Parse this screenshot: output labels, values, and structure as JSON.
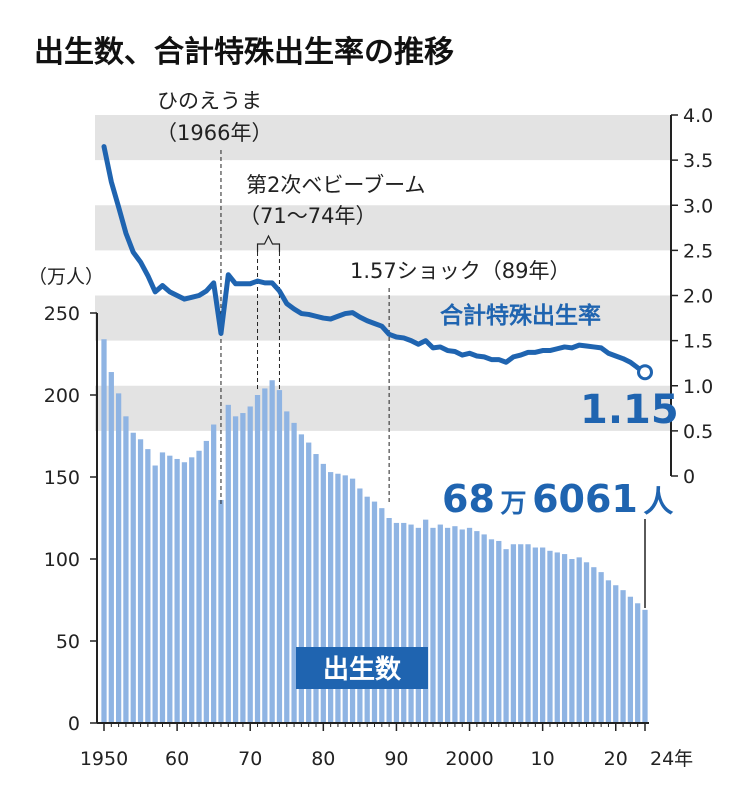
{
  "title": "出生数、合計特殊出生率の推移",
  "colors": {
    "bar": "#8fb4e3",
    "line": "#1f64b0",
    "band": "#e3e3e3",
    "label_box": "#1f64b0",
    "axis": "#222222"
  },
  "annotations": {
    "hinoeuma_title": "ひのえうま",
    "hinoeuma_year": "（1966年）",
    "boom_title": "第2次ベビーブーム",
    "boom_years": "（71〜74年）",
    "shock": "1.57ショック（89年）"
  },
  "labels": {
    "births_unit": "（万人）",
    "rate_series": "合計特殊出生率",
    "rate_final": "1.15",
    "births_final_num1": "68",
    "births_final_unit1": "万",
    "births_final_num2": "6061",
    "births_final_unit2": "人",
    "births_series": "出生数"
  },
  "chart_data": {
    "type": "bar+line",
    "x_range": [
      1950,
      2024
    ],
    "x_tick_labels": [
      {
        "year": 1950,
        "label": "1950"
      },
      {
        "year": 1960,
        "label": "60"
      },
      {
        "year": 1970,
        "label": "70"
      },
      {
        "year": 1980,
        "label": "80"
      },
      {
        "year": 1990,
        "label": "90"
      },
      {
        "year": 2000,
        "label": "2000"
      },
      {
        "year": 2010,
        "label": "10"
      },
      {
        "year": 2020,
        "label": "20"
      },
      {
        "year": 2024,
        "label": "24年"
      }
    ],
    "left_axis": {
      "label": "（万人）",
      "ylim": [
        0,
        250
      ],
      "ticks": [
        0,
        50,
        100,
        150,
        200,
        250
      ]
    },
    "right_axis": {
      "ylim": [
        0,
        4.0
      ],
      "ticks": [
        "0",
        "0.5",
        "1.0",
        "1.5",
        "2.0",
        "2.5",
        "3.0",
        "3.5",
        "4.0"
      ]
    },
    "series": [
      {
        "name": "出生数",
        "type": "bar",
        "axis": "left",
        "x": [
          1950,
          1951,
          1952,
          1953,
          1954,
          1955,
          1956,
          1957,
          1958,
          1959,
          1960,
          1961,
          1962,
          1963,
          1964,
          1965,
          1966,
          1967,
          1968,
          1969,
          1970,
          1971,
          1972,
          1973,
          1974,
          1975,
          1976,
          1977,
          1978,
          1979,
          1980,
          1981,
          1982,
          1983,
          1984,
          1985,
          1986,
          1987,
          1988,
          1989,
          1990,
          1991,
          1992,
          1993,
          1994,
          1995,
          1996,
          1997,
          1998,
          1999,
          2000,
          2001,
          2002,
          2003,
          2004,
          2005,
          2006,
          2007,
          2008,
          2009,
          2010,
          2011,
          2012,
          2013,
          2014,
          2015,
          2016,
          2017,
          2018,
          2019,
          2020,
          2021,
          2022,
          2023,
          2024
        ],
        "values": [
          234,
          214,
          201,
          187,
          177,
          173,
          167,
          157,
          165,
          163,
          161,
          159,
          162,
          166,
          172,
          182,
          136,
          194,
          187,
          189,
          193,
          200,
          204,
          209,
          203,
          190,
          183,
          176,
          171,
          164,
          158,
          153,
          152,
          151,
          149,
          143,
          138,
          135,
          131,
          125,
          122,
          122,
          121,
          119,
          124,
          119,
          121,
          119,
          120,
          118,
          119,
          117,
          115,
          112,
          111,
          106,
          109,
          109,
          109,
          107,
          107,
          105,
          104,
          103,
          100,
          101,
          98,
          95,
          92,
          87,
          84,
          81,
          77,
          73,
          69
        ]
      },
      {
        "name": "合計特殊出生率",
        "type": "line",
        "axis": "right",
        "x": [
          1950,
          1951,
          1952,
          1953,
          1954,
          1955,
          1956,
          1957,
          1958,
          1959,
          1960,
          1961,
          1962,
          1963,
          1964,
          1965,
          1966,
          1967,
          1968,
          1969,
          1970,
          1971,
          1972,
          1973,
          1974,
          1975,
          1976,
          1977,
          1978,
          1979,
          1980,
          1981,
          1982,
          1983,
          1984,
          1985,
          1986,
          1987,
          1988,
          1989,
          1990,
          1991,
          1992,
          1993,
          1994,
          1995,
          1996,
          1997,
          1998,
          1999,
          2000,
          2001,
          2002,
          2003,
          2004,
          2005,
          2006,
          2007,
          2008,
          2009,
          2010,
          2011,
          2012,
          2013,
          2014,
          2015,
          2016,
          2017,
          2018,
          2019,
          2020,
          2021,
          2022,
          2023,
          2024
        ],
        "values": [
          3.65,
          3.26,
          2.98,
          2.69,
          2.48,
          2.37,
          2.22,
          2.04,
          2.11,
          2.04,
          2.0,
          1.96,
          1.98,
          2.0,
          2.05,
          2.14,
          1.58,
          2.23,
          2.13,
          2.13,
          2.13,
          2.16,
          2.14,
          2.14,
          2.05,
          1.91,
          1.85,
          1.8,
          1.79,
          1.77,
          1.75,
          1.74,
          1.77,
          1.8,
          1.81,
          1.76,
          1.72,
          1.69,
          1.66,
          1.57,
          1.54,
          1.53,
          1.5,
          1.46,
          1.5,
          1.42,
          1.43,
          1.39,
          1.38,
          1.34,
          1.36,
          1.33,
          1.32,
          1.29,
          1.29,
          1.26,
          1.32,
          1.34,
          1.37,
          1.37,
          1.39,
          1.39,
          1.41,
          1.43,
          1.42,
          1.45,
          1.44,
          1.43,
          1.42,
          1.36,
          1.33,
          1.3,
          1.26,
          1.2,
          1.15
        ]
      }
    ],
    "marker_years": [
      1966,
      1989
    ],
    "bracket_years": [
      1971,
      1974
    ]
  }
}
